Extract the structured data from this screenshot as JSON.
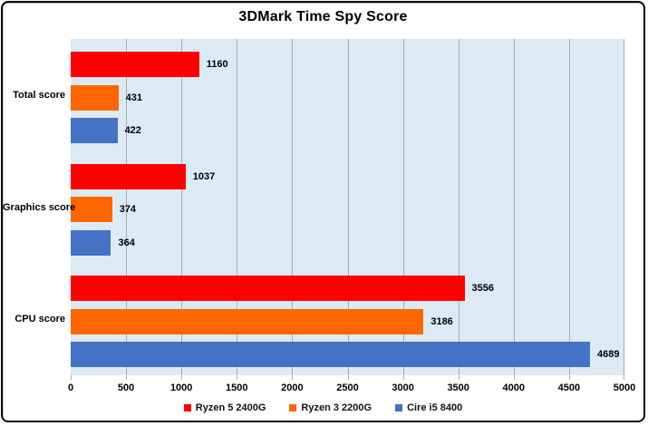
{
  "chart_data": {
    "type": "bar",
    "orientation": "horizontal",
    "title": "3DMark Time Spy Score",
    "categories": [
      "Total score",
      "Graphics score",
      "CPU score"
    ],
    "series": [
      {
        "name": "Ryzen 5 2400G",
        "color": "#FE0000",
        "values": [
          1160,
          1037,
          3556
        ]
      },
      {
        "name": "Ryzen 3 2200G",
        "color": "#FF6600",
        "values": [
          431,
          374,
          3186
        ]
      },
      {
        "name": "Cire i5 8400",
        "color": "#4472C4",
        "values": [
          422,
          364,
          4689
        ]
      }
    ],
    "xlim": [
      0,
      5000
    ],
    "xticks": [
      0,
      500,
      1000,
      1500,
      2000,
      2500,
      3000,
      3500,
      4000,
      4500,
      5000
    ],
    "grid": true,
    "data_labels": true,
    "legend_position": "bottom",
    "colors": {
      "plot_background": "#DCEBF3",
      "gridline": "#A6ADB3",
      "text": "#000000",
      "border": "#0A0A0A"
    }
  }
}
